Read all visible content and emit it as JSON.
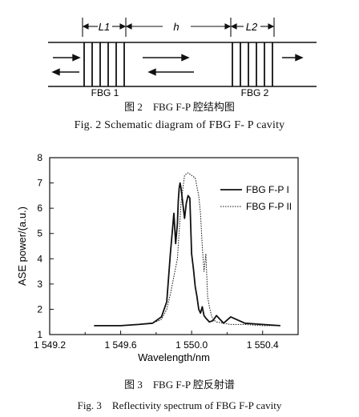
{
  "figure2": {
    "label_L1": "L1",
    "label_h": "h",
    "label_L2": "L2",
    "fbg1_label": "FBG 1",
    "fbg2_label": "FBG 2",
    "caption_cn": "图 2　FBG F-P 腔结构图",
    "caption_en": "Fig. 2 Schematic diagram of FBG F- P cavity"
  },
  "figure3": {
    "caption_cn": "图 3　FBG F-P 腔反射谱",
    "caption_en": "Fig. 3　Reflectivity spectrum of FBG F-P cavity"
  },
  "chart_data": {
    "type": "line",
    "xlabel": "Wavelength/nm",
    "ylabel": "ASE power/(a.u.)",
    "xlim": [
      1549.2,
      1550.6
    ],
    "ylim": [
      1,
      8
    ],
    "x_ticks": [
      1549.2,
      1549.6,
      1550.0,
      1550.4
    ],
    "x_tick_labels": [
      "1 549.2",
      "1 549.6",
      "1 550.0",
      "1 550.4"
    ],
    "y_ticks": [
      1,
      2,
      3,
      4,
      5,
      6,
      7,
      8
    ],
    "y_tick_labels": [
      "1",
      "2",
      "3",
      "4",
      "5",
      "6",
      "7",
      "8"
    ],
    "legend_position": "top-right",
    "series": [
      {
        "name": "FBG F-P I",
        "style": "solid",
        "x": [
          1549.45,
          1549.6,
          1549.7,
          1549.78,
          1549.83,
          1549.86,
          1549.88,
          1549.9,
          1549.91,
          1549.92,
          1549.925,
          1549.93,
          1549.935,
          1549.94,
          1549.95,
          1549.96,
          1549.97,
          1549.98,
          1549.99,
          1550.0,
          1550.01,
          1550.02,
          1550.03,
          1550.04,
          1550.05,
          1550.06,
          1550.07,
          1550.08,
          1550.1,
          1550.12,
          1550.14,
          1550.18,
          1550.22,
          1550.3,
          1550.4,
          1550.5
        ],
        "y": [
          1.35,
          1.35,
          1.4,
          1.45,
          1.7,
          2.3,
          4.2,
          5.8,
          4.6,
          5.4,
          6.3,
          6.8,
          7.0,
          6.8,
          6.2,
          5.6,
          6.2,
          6.5,
          6.4,
          4.2,
          3.6,
          2.9,
          2.5,
          2.0,
          1.85,
          2.1,
          1.75,
          1.65,
          1.5,
          1.55,
          1.75,
          1.45,
          1.7,
          1.45,
          1.4,
          1.35
        ]
      },
      {
        "name": "FBG F-P II",
        "style": "dotted",
        "x": [
          1549.45,
          1549.6,
          1549.7,
          1549.78,
          1549.83,
          1549.86,
          1549.88,
          1549.9,
          1549.92,
          1549.94,
          1549.96,
          1549.98,
          1550.0,
          1550.02,
          1550.04,
          1550.05,
          1550.06,
          1550.07,
          1550.08,
          1550.09,
          1550.1,
          1550.11,
          1550.12,
          1550.14,
          1550.18,
          1550.22,
          1550.3,
          1550.4,
          1550.5
        ],
        "y": [
          1.35,
          1.35,
          1.4,
          1.45,
          1.6,
          2.0,
          2.6,
          3.3,
          4.0,
          6.2,
          7.3,
          7.4,
          7.3,
          7.2,
          6.5,
          5.8,
          4.5,
          3.5,
          4.2,
          2.5,
          2.1,
          1.8,
          1.6,
          1.5,
          1.45,
          1.4,
          1.4,
          1.35,
          1.35
        ]
      }
    ]
  }
}
